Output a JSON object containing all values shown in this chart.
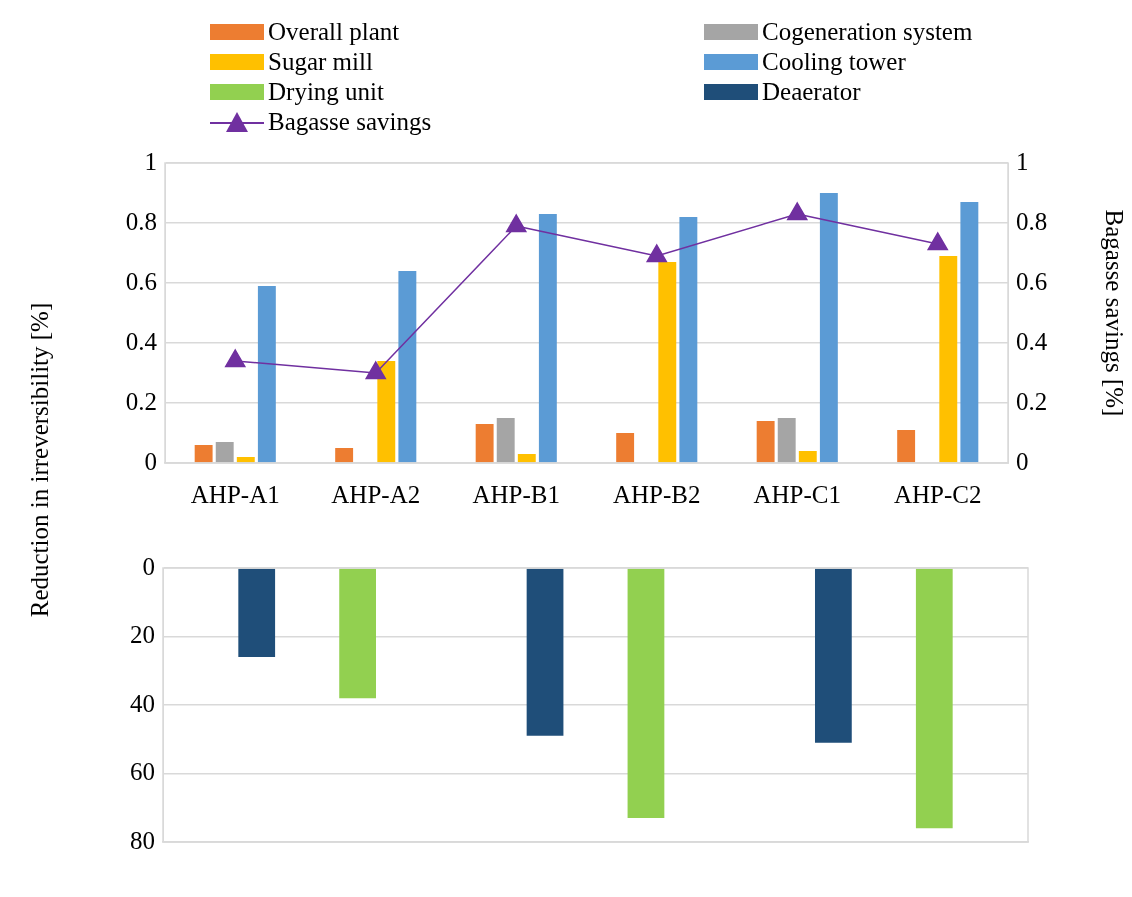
{
  "chart_data": [
    {
      "type": "bar",
      "ylabel": "Reduction in irreversibility [%]",
      "y2label": "Bagasse savings [%]",
      "categories": [
        "AHP-A1",
        "AHP-A2",
        "AHP-B1",
        "AHP-B2",
        "AHP-C1",
        "AHP-C2"
      ],
      "series": [
        {
          "name": "Overall plant",
          "color": "#ed7d31",
          "values": [
            0.06,
            0.05,
            0.13,
            0.1,
            0.14,
            0.11
          ]
        },
        {
          "name": "Cogeneration system",
          "color": "#a5a5a5",
          "values": [
            0.07,
            null,
            0.15,
            null,
            0.15,
            null
          ]
        },
        {
          "name": "Sugar mill",
          "color": "#ffc000",
          "values": [
            0.02,
            0.34,
            0.03,
            0.67,
            0.04,
            0.69
          ]
        },
        {
          "name": "Cooling tower",
          "color": "#5b9bd5",
          "values": [
            0.59,
            0.64,
            0.83,
            0.82,
            0.9,
            0.87
          ]
        },
        {
          "name": "Bagasse savings",
          "type": "line",
          "axis": "y2",
          "color": "#7030a0",
          "values": [
            0.34,
            0.3,
            0.79,
            0.69,
            0.83,
            0.73
          ]
        }
      ],
      "ylim": [
        0,
        1
      ],
      "yticks": [
        0,
        0.2,
        0.4,
        0.6,
        0.8,
        1
      ],
      "y2lim": [
        0,
        1
      ],
      "y2ticks": [
        0,
        0.2,
        0.4,
        0.6,
        0.8,
        1
      ],
      "grid": "y",
      "legend": "top",
      "marker": "triangle",
      "line_style": "solid"
    },
    {
      "type": "bar",
      "categories": [
        null,
        null,
        null,
        null,
        null,
        null
      ],
      "series": [
        {
          "name": "Drying unit",
          "color": "#92d050",
          "values": [
            null,
            38,
            null,
            73,
            null,
            76
          ]
        },
        {
          "name": "Deaerator",
          "color": "#1f4e79",
          "values": [
            26,
            null,
            49,
            null,
            51,
            null
          ]
        }
      ],
      "ylim": [
        80,
        0
      ],
      "yticks": [
        0,
        20,
        40,
        60,
        80
      ],
      "grid": "y",
      "legend": "top",
      "tick_labels": "y"
    }
  ]
}
